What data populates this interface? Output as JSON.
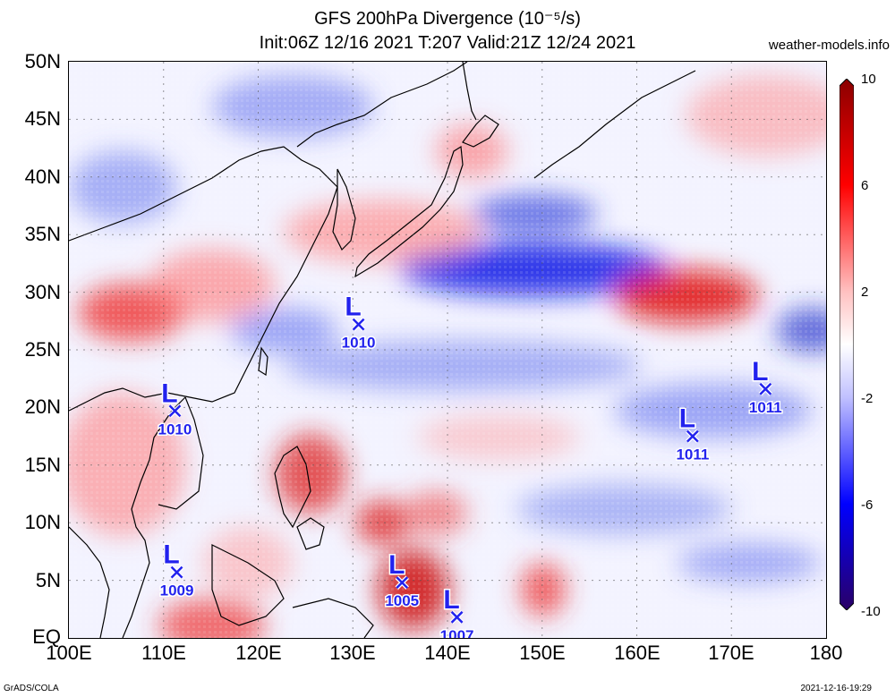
{
  "header": {
    "title": "GFS 200hPa Divergence (10⁻⁵/s)",
    "subtitle": "Init:06Z 12/16 2021 T:207 Valid:21Z 12/24 2021",
    "site": "weather-models.info"
  },
  "axes": {
    "lat_labels": [
      "50N",
      "45N",
      "40N",
      "35N",
      "30N",
      "25N",
      "20N",
      "15N",
      "10N",
      "5N",
      "EQ"
    ],
    "lon_labels": [
      "100E",
      "110E",
      "120E",
      "130E",
      "140E",
      "150E",
      "160E",
      "170E",
      "180"
    ]
  },
  "colorbar": {
    "labels": [
      "10",
      "6",
      "2",
      "-2",
      "-6",
      "-10"
    ],
    "colors": [
      "#8b0000",
      "#ff0000",
      "#ffc0c0",
      "#ffffff",
      "#c0c0ff",
      "#0000ff",
      "#2a0066"
    ]
  },
  "lows": [
    {
      "lon": 130.6,
      "lat": 27.2,
      "label": "L",
      "pressure": "1010"
    },
    {
      "lon": 111.2,
      "lat": 19.7,
      "label": "L",
      "pressure": "1010"
    },
    {
      "lon": 111.4,
      "lat": 5.7,
      "label": "L",
      "pressure": "1009"
    },
    {
      "lon": 135.2,
      "lat": 4.8,
      "label": "L",
      "pressure": "1005"
    },
    {
      "lon": 141.0,
      "lat": 1.8,
      "label": "L",
      "pressure": "1007"
    },
    {
      "lon": 165.9,
      "lat": 17.5,
      "label": "L",
      "pressure": "1011"
    },
    {
      "lon": 173.6,
      "lat": 21.6,
      "label": "L",
      "pressure": "1011"
    }
  ],
  "footer": {
    "left": "GrADS/COLA",
    "right": "2021-12-16-19:29"
  }
}
